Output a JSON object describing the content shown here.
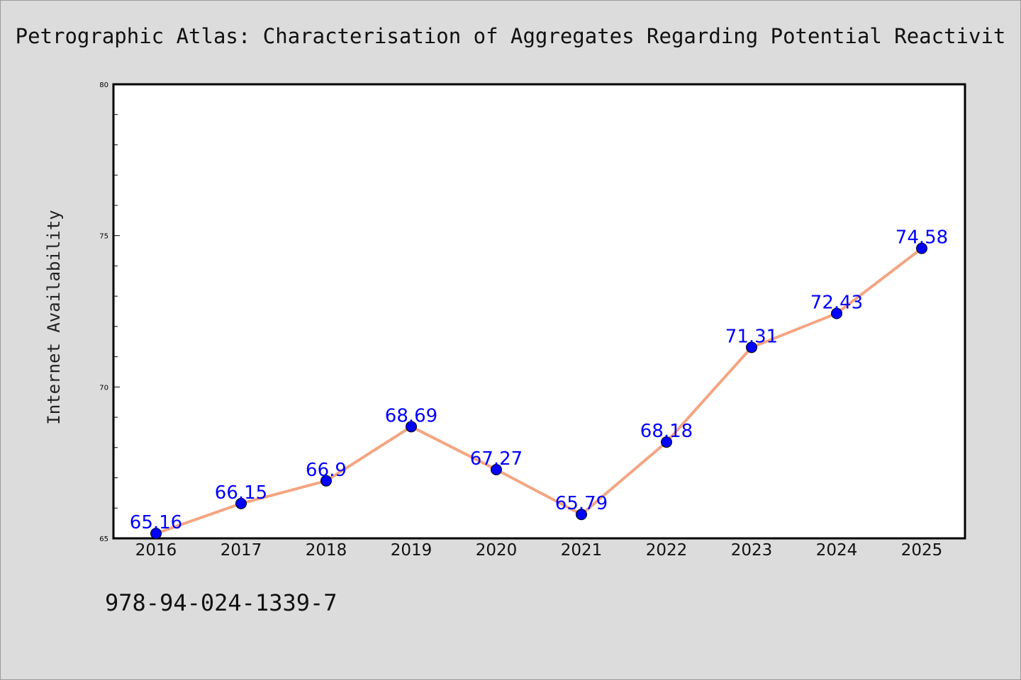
{
  "chart_data": {
    "type": "line",
    "title": "Petrographic Atlas: Characterisation of Aggregates Regarding Potential Reactivit",
    "xlabel": "",
    "ylabel": "Internet Availability",
    "x": [
      "2016",
      "2017",
      "2018",
      "2019",
      "2020",
      "2021",
      "2022",
      "2023",
      "2024",
      "2025"
    ],
    "series": [
      {
        "values": [
          65.16,
          66.15,
          66.9,
          68.69,
          67.27,
          65.79,
          68.18,
          71.31,
          72.43,
          74.58
        ],
        "labels": [
          "65.16",
          "66.15",
          "66.9",
          "68.69",
          "67.27",
          "65.79",
          "68.18",
          "71.31",
          "72.43",
          "74.58"
        ],
        "line_color": "#f4a582",
        "marker_color": "#0000ff",
        "label_color": "#0000ff"
      }
    ],
    "ylim": [
      65,
      80
    ],
    "yticks": [
      "65",
      "70",
      "75",
      "80"
    ],
    "grid": false,
    "legend": "none"
  },
  "footer": {
    "isbn": "978-94-024-1339-7"
  }
}
